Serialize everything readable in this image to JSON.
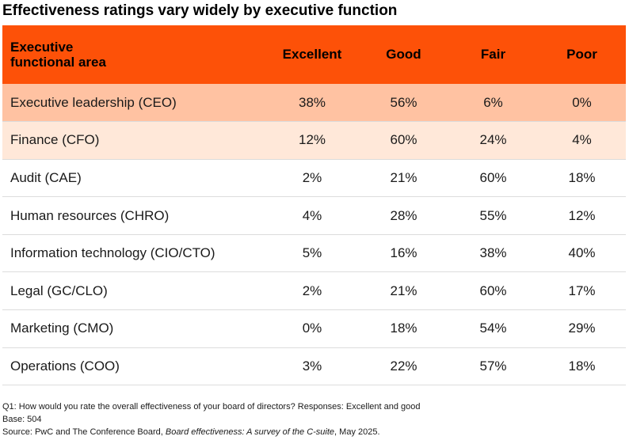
{
  "title": "Effectiveness ratings vary widely by executive function",
  "chart_data": {
    "type": "table",
    "title": "Effectiveness ratings vary widely by executive function",
    "columns": [
      "Executive\nfunctional area",
      "Excellent",
      "Good",
      "Fair",
      "Poor"
    ],
    "rows": [
      [
        "Executive leadership (CEO)",
        "38%",
        "56%",
        "6%",
        "0%"
      ],
      [
        "Finance (CFO)",
        "12%",
        "60%",
        "24%",
        "4%"
      ],
      [
        "Audit (CAE)",
        "2%",
        "21%",
        "60%",
        "18%"
      ],
      [
        "Human resources (CHRO)",
        "4%",
        "28%",
        "55%",
        "12%"
      ],
      [
        "Information technology (CIO/CTO)",
        "5%",
        "16%",
        "38%",
        "40%"
      ],
      [
        "Legal (GC/CLO)",
        "2%",
        "21%",
        "60%",
        "17%"
      ],
      [
        "Marketing (CMO)",
        "0%",
        "18%",
        "54%",
        "29%"
      ],
      [
        "Operations (COO)",
        "3%",
        "22%",
        "57%",
        "18%"
      ]
    ]
  },
  "header": {
    "col0_line1": "Executive",
    "col0_line2": "functional area",
    "excellent": "Excellent",
    "good": "Good",
    "fair": "Fair",
    "poor": "Poor"
  },
  "colors": {
    "header_bg": "#fd5108",
    "row_highlight_1": "#ffc2a2",
    "row_highlight_2": "#ffe8d9"
  },
  "footnotes": {
    "question": "Q1: How would you rate the overall effectiveness of your board of directors? Responses: Excellent and good",
    "base": "Base: 504",
    "source_prefix": "Source: PwC and The Conference Board, ",
    "source_title": "Board effectiveness: A survey of the C-suite",
    "source_suffix": ", May 2025."
  }
}
